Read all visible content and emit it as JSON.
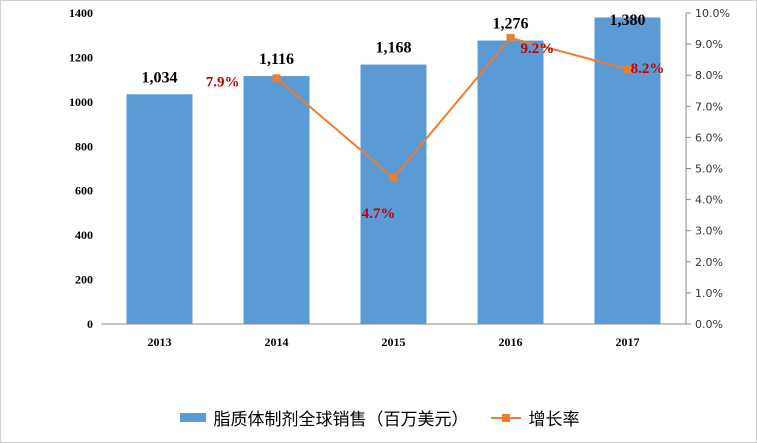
{
  "chart_data": {
    "type": "bar+line",
    "categories": [
      "2013",
      "2014",
      "2015",
      "2016",
      "2017"
    ],
    "series": [
      {
        "name": "脂质体制剂全球销售（百万美元）",
        "type": "bar",
        "axis": "left",
        "values": [
          1034,
          1116,
          1168,
          1276,
          1380
        ],
        "labels": [
          "1,034",
          "1,116",
          "1,168",
          "1,276",
          "1,380"
        ],
        "color": "#5b9bd5"
      },
      {
        "name": "增长率",
        "type": "line",
        "axis": "right",
        "values": [
          null,
          7.9,
          4.7,
          9.2,
          8.2
        ],
        "labels": [
          "",
          "7.9%",
          "4.7%",
          "9.2%",
          "8.2%"
        ],
        "color": "#ed7d31",
        "label_color": "#c00000"
      }
    ],
    "y_left": {
      "range": [
        0,
        1400
      ],
      "ticks": [
        "0",
        "200",
        "400",
        "600",
        "800",
        "1000",
        "1200",
        "1400"
      ]
    },
    "y_right": {
      "range": [
        0,
        10
      ],
      "ticks": [
        "0.0%",
        "1.0%",
        "2.0%",
        "3.0%",
        "4.0%",
        "5.0%",
        "6.0%",
        "7.0%",
        "8.0%",
        "9.0%",
        "10.0%"
      ]
    },
    "grid": false,
    "legend": "bottom"
  }
}
